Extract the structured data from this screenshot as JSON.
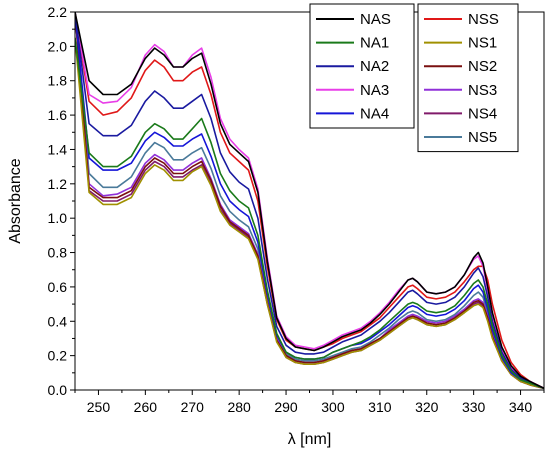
{
  "chart_data": {
    "type": "line",
    "title": "",
    "xlabel": "λ [nm]",
    "ylabel": "Absorbance",
    "xlim": [
      245,
      345
    ],
    "ylim": [
      0.0,
      2.2
    ],
    "x_ticks": [
      250,
      260,
      270,
      280,
      290,
      300,
      310,
      320,
      330,
      340
    ],
    "y_ticks": [
      0.0,
      0.2,
      0.4,
      0.6,
      0.8,
      1.0,
      1.2,
      1.4,
      1.6,
      1.8,
      2.0,
      2.2
    ],
    "grid": false,
    "legend_placement": "top-right",
    "x": [
      245,
      248,
      251,
      254,
      257,
      260,
      262,
      264,
      266,
      268,
      270,
      272,
      274,
      276,
      278,
      280,
      282,
      284,
      286,
      288,
      290,
      292,
      294,
      296,
      298,
      300,
      302,
      304,
      306,
      308,
      310,
      312,
      314,
      316,
      317,
      318,
      320,
      322,
      324,
      326,
      328,
      330,
      331,
      332,
      333,
      334,
      336,
      338,
      340,
      342,
      345
    ],
    "series": [
      {
        "name": "NAS",
        "color": "#000000",
        "values": [
          2.2,
          1.8,
          1.72,
          1.72,
          1.78,
          1.93,
          1.99,
          1.95,
          1.88,
          1.88,
          1.93,
          1.96,
          1.78,
          1.55,
          1.43,
          1.38,
          1.33,
          1.15,
          0.75,
          0.42,
          0.3,
          0.25,
          0.24,
          0.23,
          0.25,
          0.28,
          0.31,
          0.33,
          0.35,
          0.39,
          0.44,
          0.5,
          0.57,
          0.64,
          0.65,
          0.63,
          0.57,
          0.56,
          0.57,
          0.6,
          0.67,
          0.77,
          0.8,
          0.74,
          0.6,
          0.45,
          0.25,
          0.14,
          0.08,
          0.05,
          0.01
        ]
      },
      {
        "name": "NA1",
        "color": "#1a7a1a",
        "values": [
          2.05,
          1.38,
          1.3,
          1.3,
          1.36,
          1.5,
          1.55,
          1.52,
          1.46,
          1.46,
          1.52,
          1.58,
          1.44,
          1.26,
          1.16,
          1.1,
          1.06,
          0.9,
          0.58,
          0.33,
          0.22,
          0.19,
          0.18,
          0.18,
          0.19,
          0.22,
          0.24,
          0.26,
          0.28,
          0.31,
          0.35,
          0.4,
          0.45,
          0.5,
          0.51,
          0.5,
          0.46,
          0.45,
          0.46,
          0.49,
          0.55,
          0.62,
          0.64,
          0.6,
          0.5,
          0.37,
          0.2,
          0.11,
          0.06,
          0.04,
          0.01
        ]
      },
      {
        "name": "NA2",
        "color": "#1a1aa0",
        "values": [
          2.2,
          1.55,
          1.48,
          1.48,
          1.54,
          1.68,
          1.74,
          1.7,
          1.64,
          1.64,
          1.68,
          1.72,
          1.58,
          1.38,
          1.27,
          1.21,
          1.17,
          1.0,
          0.65,
          0.37,
          0.26,
          0.22,
          0.21,
          0.21,
          0.22,
          0.25,
          0.28,
          0.3,
          0.32,
          0.36,
          0.4,
          0.45,
          0.51,
          0.57,
          0.58,
          0.56,
          0.51,
          0.5,
          0.51,
          0.54,
          0.6,
          0.68,
          0.71,
          0.66,
          0.54,
          0.4,
          0.22,
          0.12,
          0.07,
          0.04,
          0.01
        ]
      },
      {
        "name": "NA3",
        "color": "#e83ee8",
        "values": [
          2.2,
          1.72,
          1.67,
          1.68,
          1.76,
          1.95,
          2.01,
          1.97,
          1.88,
          1.88,
          1.95,
          1.99,
          1.82,
          1.58,
          1.46,
          1.4,
          1.35,
          1.17,
          0.77,
          0.43,
          0.31,
          0.26,
          0.25,
          0.24,
          0.26,
          0.29,
          0.32,
          0.34,
          0.36,
          0.4,
          0.45,
          0.51,
          0.58,
          0.64,
          0.65,
          0.63,
          0.57,
          0.56,
          0.57,
          0.6,
          0.67,
          0.76,
          0.78,
          0.72,
          0.58,
          0.43,
          0.24,
          0.13,
          0.07,
          0.05,
          0.01
        ]
      },
      {
        "name": "NA4",
        "color": "#1515d8",
        "values": [
          2.2,
          1.35,
          1.28,
          1.28,
          1.32,
          1.45,
          1.5,
          1.47,
          1.42,
          1.42,
          1.46,
          1.49,
          1.36,
          1.2,
          1.1,
          1.05,
          1.01,
          0.86,
          0.56,
          0.32,
          0.22,
          0.19,
          0.18,
          0.18,
          0.19,
          0.22,
          0.24,
          0.26,
          0.27,
          0.3,
          0.34,
          0.38,
          0.43,
          0.48,
          0.49,
          0.48,
          0.44,
          0.43,
          0.44,
          0.47,
          0.52,
          0.59,
          0.61,
          0.57,
          0.47,
          0.35,
          0.19,
          0.1,
          0.06,
          0.04,
          0.01
        ]
      },
      {
        "name": "NSS",
        "color": "#e01818",
        "values": [
          2.2,
          1.68,
          1.6,
          1.62,
          1.7,
          1.86,
          1.92,
          1.88,
          1.8,
          1.8,
          1.85,
          1.88,
          1.72,
          1.5,
          1.38,
          1.33,
          1.28,
          1.1,
          0.72,
          0.41,
          0.29,
          0.25,
          0.24,
          0.23,
          0.25,
          0.27,
          0.3,
          0.32,
          0.34,
          0.38,
          0.42,
          0.48,
          0.54,
          0.6,
          0.61,
          0.59,
          0.54,
          0.53,
          0.54,
          0.57,
          0.63,
          0.7,
          0.72,
          0.72,
          0.64,
          0.5,
          0.29,
          0.16,
          0.09,
          0.05,
          0.01
        ]
      },
      {
        "name": "NS1",
        "color": "#a09000",
        "values": [
          2.05,
          1.15,
          1.08,
          1.08,
          1.12,
          1.26,
          1.31,
          1.28,
          1.22,
          1.22,
          1.27,
          1.3,
          1.19,
          1.04,
          0.96,
          0.92,
          0.88,
          0.76,
          0.5,
          0.28,
          0.19,
          0.16,
          0.15,
          0.15,
          0.16,
          0.18,
          0.2,
          0.22,
          0.23,
          0.26,
          0.29,
          0.33,
          0.37,
          0.41,
          0.42,
          0.41,
          0.38,
          0.37,
          0.38,
          0.41,
          0.45,
          0.49,
          0.5,
          0.48,
          0.4,
          0.3,
          0.17,
          0.09,
          0.05,
          0.03,
          0.01
        ]
      },
      {
        "name": "NS2",
        "color": "#7a1010",
        "values": [
          2.2,
          1.18,
          1.12,
          1.12,
          1.16,
          1.3,
          1.35,
          1.32,
          1.26,
          1.26,
          1.3,
          1.33,
          1.22,
          1.07,
          0.98,
          0.94,
          0.9,
          0.78,
          0.51,
          0.29,
          0.2,
          0.17,
          0.16,
          0.16,
          0.17,
          0.19,
          0.21,
          0.23,
          0.24,
          0.27,
          0.3,
          0.34,
          0.38,
          0.42,
          0.43,
          0.42,
          0.39,
          0.38,
          0.39,
          0.42,
          0.46,
          0.51,
          0.52,
          0.5,
          0.42,
          0.31,
          0.17,
          0.09,
          0.05,
          0.03,
          0.01
        ]
      },
      {
        "name": "NS3",
        "color": "#9030d8",
        "values": [
          2.2,
          1.2,
          1.13,
          1.14,
          1.18,
          1.32,
          1.37,
          1.34,
          1.28,
          1.28,
          1.32,
          1.35,
          1.23,
          1.08,
          0.99,
          0.95,
          0.91,
          0.79,
          0.52,
          0.3,
          0.2,
          0.17,
          0.16,
          0.16,
          0.17,
          0.19,
          0.21,
          0.23,
          0.24,
          0.27,
          0.3,
          0.35,
          0.39,
          0.43,
          0.44,
          0.43,
          0.4,
          0.39,
          0.4,
          0.43,
          0.47,
          0.52,
          0.53,
          0.51,
          0.43,
          0.32,
          0.18,
          0.1,
          0.05,
          0.03,
          0.01
        ]
      },
      {
        "name": "NS4",
        "color": "#801a6a",
        "values": [
          2.2,
          1.16,
          1.1,
          1.1,
          1.14,
          1.28,
          1.33,
          1.3,
          1.24,
          1.24,
          1.28,
          1.31,
          1.2,
          1.05,
          0.97,
          0.93,
          0.89,
          0.77,
          0.5,
          0.29,
          0.19,
          0.16,
          0.15,
          0.15,
          0.16,
          0.18,
          0.2,
          0.22,
          0.23,
          0.26,
          0.29,
          0.33,
          0.37,
          0.41,
          0.42,
          0.41,
          0.38,
          0.37,
          0.38,
          0.41,
          0.45,
          0.5,
          0.51,
          0.49,
          0.41,
          0.31,
          0.17,
          0.09,
          0.05,
          0.03,
          0.01
        ]
      },
      {
        "name": "NS5",
        "color": "#4a7a9a",
        "values": [
          2.2,
          1.26,
          1.18,
          1.18,
          1.24,
          1.38,
          1.44,
          1.41,
          1.34,
          1.34,
          1.38,
          1.41,
          1.29,
          1.13,
          1.04,
          0.99,
          0.95,
          0.82,
          0.54,
          0.31,
          0.21,
          0.18,
          0.17,
          0.17,
          0.18,
          0.2,
          0.22,
          0.24,
          0.25,
          0.28,
          0.32,
          0.36,
          0.41,
          0.45,
          0.46,
          0.45,
          0.41,
          0.4,
          0.41,
          0.44,
          0.49,
          0.55,
          0.57,
          0.54,
          0.45,
          0.33,
          0.18,
          0.1,
          0.05,
          0.03,
          0.01
        ]
      }
    ]
  }
}
